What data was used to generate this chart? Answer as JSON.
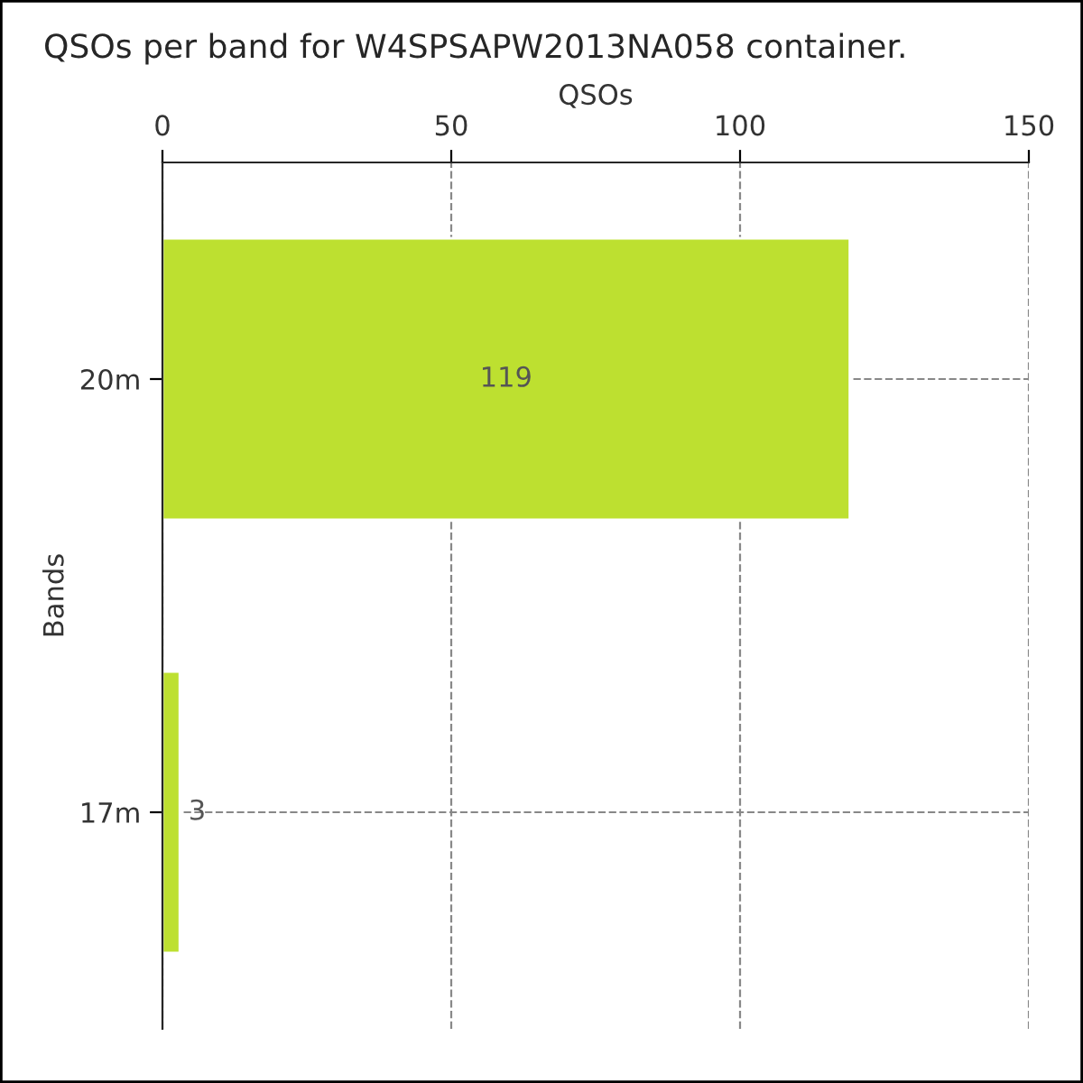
{
  "chart_data": {
    "type": "bar",
    "orientation": "horizontal",
    "title": "QSOs per band for W4SPSAPW2013NA058 container.",
    "xlabel": "QSOs",
    "ylabel": "Bands",
    "categories": [
      "20m",
      "17m"
    ],
    "values": [
      119,
      3
    ],
    "color": "#bde030",
    "xlim": [
      0,
      150
    ],
    "xticks": [
      0,
      50,
      100,
      150
    ],
    "grid": true,
    "data_labels": true
  }
}
